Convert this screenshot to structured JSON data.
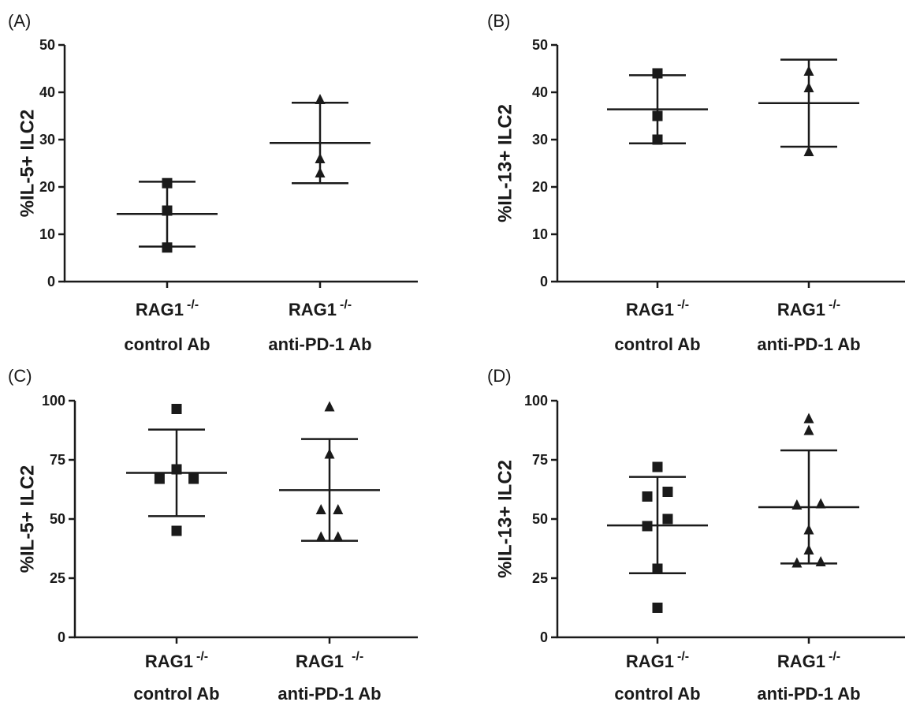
{
  "chart_data": [
    {
      "type": "scatter",
      "panel_label": "(A)",
      "ylabel": "%IL-5+ ILC2",
      "ylim": [
        0,
        50
      ],
      "yticks": [
        "0",
        "10",
        "20",
        "30",
        "40",
        "50"
      ],
      "categories": [
        {
          "line1": "RAG1",
          "sup": "-/-",
          "line2": "control Ab"
        },
        {
          "line1": "RAG1",
          "sup": "-/-",
          "line2": "anti-PD-1 Ab"
        }
      ],
      "groups": [
        {
          "marker": "square",
          "points": [
            7.2,
            15,
            20.8
          ],
          "mean": 14.3,
          "sd_low": 7.4,
          "sd_high": 21.1
        },
        {
          "marker": "triangle",
          "points": [
            23,
            26,
            38.5
          ],
          "mean": 29.3,
          "sd_low": 20.8,
          "sd_high": 37.8
        }
      ]
    },
    {
      "type": "scatter",
      "panel_label": "(B)",
      "ylabel": "%IL-13+ ILC2",
      "ylim": [
        0,
        50
      ],
      "yticks": [
        "0",
        "10",
        "20",
        "30",
        "40",
        "50"
      ],
      "categories": [
        {
          "line1": "RAG1",
          "sup": "-/-",
          "line2": "control Ab"
        },
        {
          "line1": "RAG1",
          "sup": "-/-",
          "line2": "anti-PD-1 Ab"
        }
      ],
      "groups": [
        {
          "marker": "square",
          "points": [
            30,
            35,
            44
          ],
          "mean": 36.4,
          "sd_low": 29.2,
          "sd_high": 43.6
        },
        {
          "marker": "triangle",
          "points": [
            27.5,
            41,
            44.5
          ],
          "mean": 37.7,
          "sd_low": 28.5,
          "sd_high": 46.9
        }
      ]
    },
    {
      "type": "scatter",
      "panel_label": "(C)",
      "ylabel": "%IL-5+ ILC2",
      "ylim": [
        0,
        100
      ],
      "yticks": [
        "0",
        "25",
        "50",
        "75",
        "100"
      ],
      "categories": [
        {
          "line1": "RAG1",
          "sup": "-/-",
          "line2": "control Ab"
        },
        {
          "line1": "RAG1 ",
          "sup": "-/-",
          "line2": "anti-PD-1 Ab"
        }
      ],
      "groups": [
        {
          "marker": "square",
          "points": [
            45,
            67,
            67,
            71,
            96.5
          ],
          "offsets": [
            0,
            -1,
            1,
            0,
            0
          ],
          "mean": 69.5,
          "sd_low": 51.2,
          "sd_high": 87.8
        },
        {
          "marker": "triangle",
          "points": [
            42.5,
            42.5,
            54,
            54,
            77.5,
            97.5
          ],
          "offsets": [
            -0.5,
            0.5,
            -0.5,
            0.5,
            0,
            0
          ],
          "mean": 62.2,
          "sd_low": 40.8,
          "sd_high": 83.8
        }
      ]
    },
    {
      "type": "scatter",
      "panel_label": "(D)",
      "ylabel": "%IL-13+ ILC2",
      "ylim": [
        0,
        100
      ],
      "yticks": [
        "0",
        "25",
        "50",
        "75",
        "100"
      ],
      "categories": [
        {
          "line1": "RAG1",
          "sup": "-/-",
          "line2": "control Ab"
        },
        {
          "line1": "RAG1",
          "sup": "-/-",
          "line2": "anti-PD-1 Ab"
        }
      ],
      "groups": [
        {
          "marker": "square",
          "points": [
            12.5,
            29,
            47,
            50,
            59.5,
            61.5,
            72
          ],
          "offsets": [
            0,
            0,
            -0.6,
            0.6,
            -0.6,
            0.6,
            0
          ],
          "mean": 47.3,
          "sd_low": 27.1,
          "sd_high": 67.8
        },
        {
          "marker": "triangle",
          "points": [
            31.5,
            32,
            37,
            45.5,
            56,
            56.5,
            87.5,
            92.5
          ],
          "offsets": [
            -0.7,
            0.7,
            0,
            0,
            -0.7,
            0.7,
            0,
            0
          ],
          "mean": 55,
          "sd_low": 31.2,
          "sd_high": 79
        }
      ]
    }
  ]
}
